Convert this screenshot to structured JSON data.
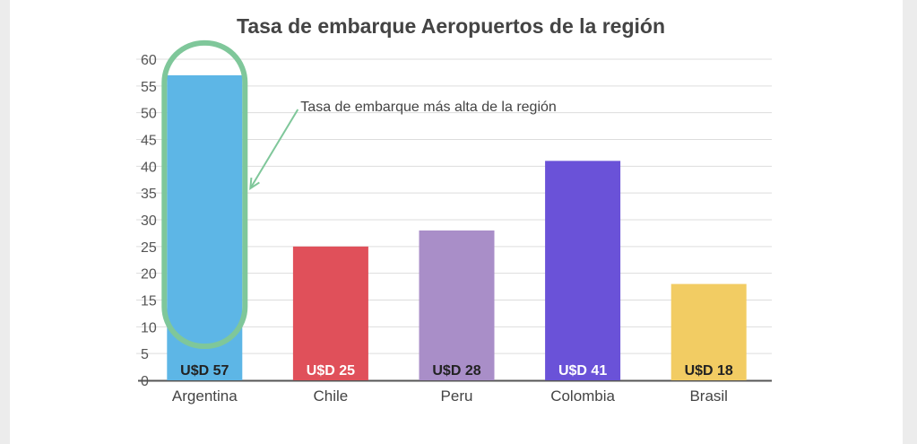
{
  "chart_data": {
    "type": "bar",
    "title": "Tasa de embarque Aeropuertos de la región",
    "xlabel": "",
    "ylabel": "",
    "ylim": [
      0,
      60
    ],
    "yticks": [
      0,
      5,
      10,
      15,
      20,
      25,
      30,
      35,
      40,
      45,
      50,
      55,
      60
    ],
    "grid": true,
    "categories": [
      "Argentina",
      "Chile",
      "Peru",
      "Colombia",
      "Brasil"
    ],
    "values": [
      57,
      25,
      28,
      41,
      18
    ],
    "data_labels": [
      "U$D 57",
      "U$D 25",
      "U$D 28",
      "U$D 41",
      "U$D 18"
    ],
    "colors": [
      "#5db6e6",
      "#e0505a",
      "#a98ec8",
      "#6a52d8",
      "#f2cc63"
    ],
    "label_colors": [
      "#222222",
      "#ffffff",
      "#222222",
      "#ffffff",
      "#222222"
    ],
    "annotation": {
      "text": "Tasa de embarque más alta de la región",
      "target": "Argentina",
      "highlight_color": "#7fc79a"
    }
  }
}
